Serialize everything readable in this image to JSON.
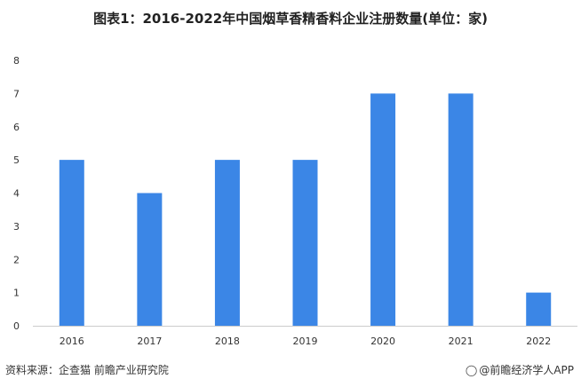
{
  "title": "图表1：2016-2022年中国烟草香精香料企业注册数量(单位：家)",
  "source": "资料来源：企查猫 前瞻产业研究院",
  "brand": {
    "icon": "qianzhan-logo-icon",
    "text": "@前瞻经济学人APP"
  },
  "colors": {
    "bar": "#3b86e6",
    "axis": "#cccccc",
    "tick_text": "#333333"
  },
  "chart_data": {
    "type": "bar",
    "categories": [
      "2016",
      "2017",
      "2018",
      "2019",
      "2020",
      "2021",
      "2022"
    ],
    "values": [
      5,
      4,
      5,
      5,
      7,
      7,
      1
    ],
    "title": "图表1：2016-2022年中国烟草香精香料企业注册数量(单位：家)",
    "xlabel": "",
    "ylabel": "",
    "ylim": [
      0,
      8
    ],
    "yticks": [
      "0",
      "1",
      "2",
      "3",
      "4",
      "5",
      "6",
      "7",
      "8"
    ],
    "grid": false,
    "legend": "none"
  }
}
